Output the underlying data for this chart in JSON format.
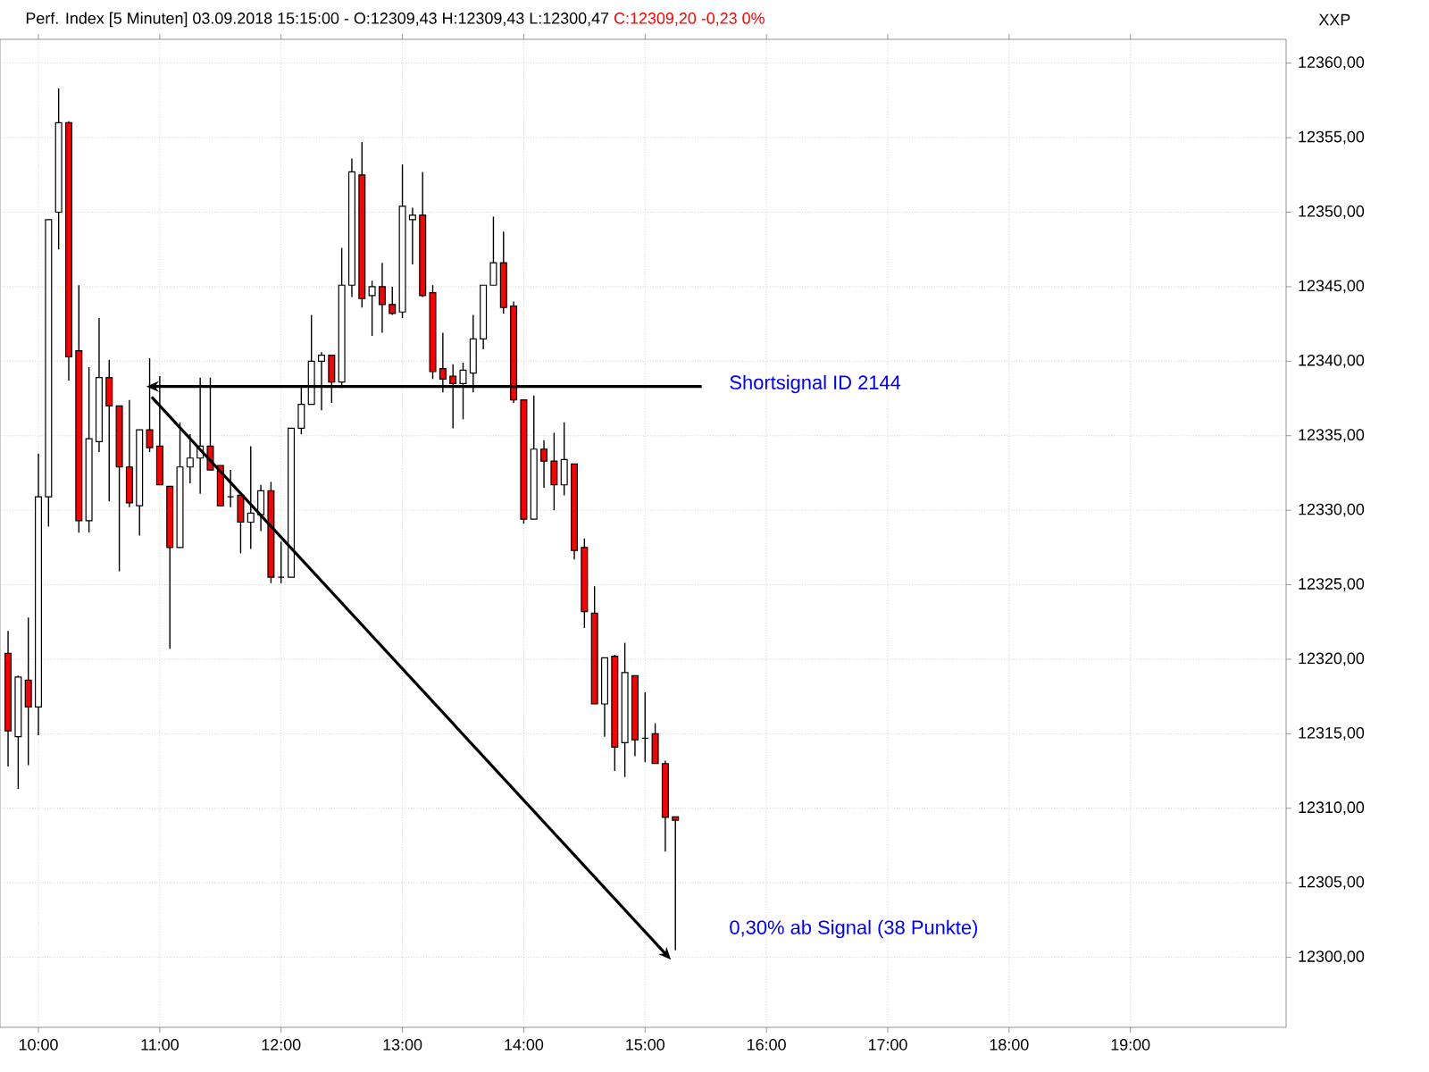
{
  "chart_data": {
    "type": "candlestick",
    "title": "Perf. Index [5 Minuten] 03.09.2018 15:15:00 - O:12309,43 H:12309,43 L:12300,47",
    "subtitle": "C:12309,20 -0,23 0%",
    "x": [
      "2018-09-03T09:45",
      "2018-09-03T09:50",
      "2018-09-03T09:55",
      "2018-09-03T10:00",
      "2018-09-03T10:05",
      "2018-09-03T10:10",
      "2018-09-03T10:15",
      "2018-09-03T10:20",
      "2018-09-03T10:25",
      "2018-09-03T10:30",
      "2018-09-03T10:35",
      "2018-09-03T10:40",
      "2018-09-03T10:45",
      "2018-09-03T10:50",
      "2018-09-03T10:55",
      "2018-09-03T11:00",
      "2018-09-03T11:05",
      "2018-09-03T11:10",
      "2018-09-03T11:15",
      "2018-09-03T11:20",
      "2018-09-03T11:25",
      "2018-09-03T11:30",
      "2018-09-03T11:35",
      "2018-09-03T11:40",
      "2018-09-03T11:45",
      "2018-09-03T11:50",
      "2018-09-03T11:55",
      "2018-09-03T12:00",
      "2018-09-03T12:05",
      "2018-09-03T12:10",
      "2018-09-03T12:15",
      "2018-09-03T12:20",
      "2018-09-03T12:25",
      "2018-09-03T12:30",
      "2018-09-03T12:35",
      "2018-09-03T12:40",
      "2018-09-03T12:45",
      "2018-09-03T12:50",
      "2018-09-03T12:55",
      "2018-09-03T13:00",
      "2018-09-03T13:05",
      "2018-09-03T13:10",
      "2018-09-03T13:15",
      "2018-09-03T13:20",
      "2018-09-03T13:25",
      "2018-09-03T13:30",
      "2018-09-03T13:35",
      "2018-09-03T13:40",
      "2018-09-03T13:45",
      "2018-09-03T13:50",
      "2018-09-03T13:55",
      "2018-09-03T14:00",
      "2018-09-03T14:05",
      "2018-09-03T14:10",
      "2018-09-03T14:15",
      "2018-09-03T14:20",
      "2018-09-03T14:25",
      "2018-09-03T14:30",
      "2018-09-03T14:35",
      "2018-09-03T14:40",
      "2018-09-03T14:45",
      "2018-09-03T14:50",
      "2018-09-03T14:55",
      "2018-09-03T15:00",
      "2018-09-03T15:05",
      "2018-09-03T15:10",
      "2018-09-03T15:15"
    ],
    "ohlc": [
      [
        12320.4,
        12321.9,
        12312.8,
        12315.2
      ],
      [
        12314.8,
        12318.9,
        12311.3,
        12318.8
      ],
      [
        12318.6,
        12322.8,
        12312.9,
        12316.8
      ],
      [
        12316.8,
        12333.8,
        12314.9,
        12330.9
      ],
      [
        12330.9,
        12349.5,
        12328.9,
        12349.5
      ],
      [
        12350.0,
        12358.3,
        12347.5,
        12356.0
      ],
      [
        12356.0,
        12356.1,
        12338.7,
        12340.3
      ],
      [
        12340.7,
        12345.1,
        12328.5,
        12329.3
      ],
      [
        12329.3,
        12339.6,
        12328.5,
        12334.8
      ],
      [
        12334.6,
        12342.9,
        12333.9,
        12338.9
      ],
      [
        12338.9,
        12340.1,
        12330.6,
        12337.0
      ],
      [
        12337.0,
        12337.0,
        12325.9,
        12332.9
      ],
      [
        12332.9,
        12337.4,
        12330.2,
        12330.5
      ],
      [
        12330.3,
        12335.4,
        12328.3,
        12335.4
      ],
      [
        12335.4,
        12340.2,
        12333.9,
        12334.2
      ],
      [
        12334.3,
        12339.0,
        12331.7,
        12331.7
      ],
      [
        12331.6,
        12331.6,
        12320.7,
        12327.5
      ],
      [
        12327.5,
        12335.9,
        12327.5,
        12332.9
      ],
      [
        12332.9,
        12335.1,
        12331.8,
        12333.5
      ],
      [
        12333.5,
        12338.9,
        12331.1,
        12334.3
      ],
      [
        12334.3,
        12338.9,
        12332.7,
        12332.7
      ],
      [
        12333.0,
        12333.0,
        12330.3,
        12330.3
      ],
      [
        12330.9,
        12332.7,
        12330.2,
        12330.9
      ],
      [
        12331.0,
        12331.0,
        12327.1,
        12329.2
      ],
      [
        12329.2,
        12334.3,
        12327.4,
        12329.8
      ],
      [
        12329.7,
        12331.7,
        12328.6,
        12331.3
      ],
      [
        12331.3,
        12331.9,
        12325.1,
        12325.5
      ],
      [
        12325.5,
        12327.9,
        12325.1,
        12325.5
      ],
      [
        12325.5,
        12335.5,
        12325.5,
        12335.5
      ],
      [
        12335.5,
        12338.4,
        12335.1,
        12337.1
      ],
      [
        12337.1,
        12343.1,
        12337.1,
        12340.0
      ],
      [
        12340.0,
        12340.6,
        12336.7,
        12340.4
      ],
      [
        12340.4,
        12340.4,
        12337.2,
        12338.6
      ],
      [
        12338.6,
        12347.6,
        12338.2,
        12345.1
      ],
      [
        12345.1,
        12353.6,
        12344.3,
        12352.7
      ],
      [
        12352.5,
        12354.7,
        12343.6,
        12344.2
      ],
      [
        12344.4,
        12345.4,
        12341.7,
        12345.0
      ],
      [
        12345.0,
        12346.6,
        12341.9,
        12343.8
      ],
      [
        12343.8,
        12345.0,
        12343.1,
        12343.2
      ],
      [
        12343.3,
        12353.2,
        12342.9,
        12350.4
      ],
      [
        12349.5,
        12350.3,
        12346.5,
        12349.8
      ],
      [
        12349.8,
        12352.7,
        12344.3,
        12344.4
      ],
      [
        12344.6,
        12345.1,
        12338.8,
        12339.3
      ],
      [
        12339.5,
        12341.9,
        12337.9,
        12338.8
      ],
      [
        12339.0,
        12339.8,
        12335.5,
        12338.5
      ],
      [
        12338.5,
        12339.9,
        12336.1,
        12339.4
      ],
      [
        12339.2,
        12343.1,
        12337.9,
        12341.5
      ],
      [
        12341.5,
        12345.1,
        12340.8,
        12345.1
      ],
      [
        12345.1,
        12349.7,
        12345.1,
        12346.6
      ],
      [
        12346.6,
        12348.7,
        12343.2,
        12343.6
      ],
      [
        12343.7,
        12344.0,
        12337.2,
        12337.4
      ],
      [
        12337.4,
        12337.4,
        12329.1,
        12329.4
      ],
      [
        12329.4,
        12337.7,
        12329.4,
        12334.1
      ],
      [
        12334.1,
        12334.7,
        12331.5,
        12333.3
      ],
      [
        12333.3,
        12335.2,
        12330.0,
        12331.7
      ],
      [
        12331.7,
        12335.9,
        12331.0,
        12333.4
      ],
      [
        12333.1,
        12333.1,
        12326.7,
        12327.3
      ],
      [
        12327.5,
        12328.1,
        12322.1,
        12323.2
      ],
      [
        12323.1,
        12324.9,
        12317.0,
        12317.0
      ],
      [
        12317.0,
        12320.1,
        12314.8,
        12320.1
      ],
      [
        12320.2,
        12320.3,
        12312.5,
        12314.1
      ],
      [
        12314.4,
        12321.1,
        12312.1,
        12319.1
      ],
      [
        12318.9,
        12318.9,
        12313.5,
        12314.6
      ],
      [
        12314.7,
        12317.8,
        12313.1,
        12314.7
      ],
      [
        12315.0,
        12315.7,
        12313.0,
        12313.0
      ],
      [
        12313.0,
        12313.2,
        12307.1,
        12309.4
      ],
      [
        12309.43,
        12309.43,
        12300.47,
        12309.2
      ]
    ],
    "series": [
      {
        "type": "line",
        "color": "#000000",
        "x": [
          "2018-09-03T15:28",
          "2018-09-03T10:56"
        ],
        "values": [
          12338.3,
          12338.3
        ]
      },
      {
        "type": "line",
        "color": "#000000",
        "x": [
          "2018-09-03T10:56",
          "2018-09-03T15:11"
        ],
        "values": [
          12337.6,
          12300.1
        ]
      }
    ],
    "annotations": [
      "Shortsignal ID 2144",
      "0,30% ab Signal (38 Punkte)",
      "XXP"
    ],
    "xlim": [
      "2018-09-03T09:41",
      "2018-09-03T20:17"
    ],
    "xticks": [
      {
        "value": "2018-09-03T10:00",
        "label": "10:00"
      },
      {
        "value": "2018-09-03T11:00",
        "label": "11:00"
      },
      {
        "value": "2018-09-03T12:00",
        "label": "12:00"
      },
      {
        "value": "2018-09-03T13:00",
        "label": "13:00"
      },
      {
        "value": "2018-09-03T14:00",
        "label": "14:00"
      },
      {
        "value": "2018-09-03T15:00",
        "label": "15:00"
      },
      {
        "value": "2018-09-03T16:00",
        "label": "16:00"
      },
      {
        "value": "2018-09-03T17:00",
        "label": "17:00"
      },
      {
        "value": "2018-09-03T18:00",
        "label": "18:00"
      },
      {
        "value": "2018-09-03T19:00",
        "label": "19:00"
      }
    ],
    "ylim": [
      12295.3,
      12361.6
    ],
    "yticks": [
      {
        "value": 12300,
        "label": "12300,00"
      },
      {
        "value": 12305,
        "label": "12305,00"
      },
      {
        "value": 12310,
        "label": "12310,00"
      },
      {
        "value": 12315,
        "label": "12315,00"
      },
      {
        "value": 12320,
        "label": "12320,00"
      },
      {
        "value": 12325,
        "label": "12325,00"
      },
      {
        "value": 12330,
        "label": "12330,00"
      },
      {
        "value": 12335,
        "label": "12335,00"
      },
      {
        "value": 12340,
        "label": "12340,00"
      },
      {
        "value": 12345,
        "label": "12345,00"
      },
      {
        "value": 12350,
        "label": "12350,00"
      },
      {
        "value": 12355,
        "label": "12355,00"
      },
      {
        "value": 12360,
        "label": "12360,00"
      }
    ],
    "grid": true
  }
}
